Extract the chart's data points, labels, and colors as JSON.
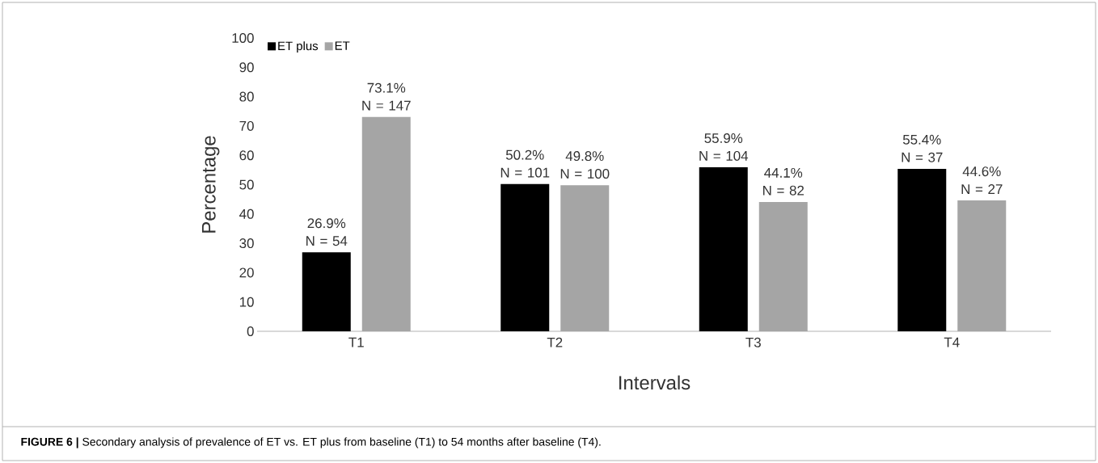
{
  "chart_data": {
    "type": "bar",
    "xlabel": "Intervals",
    "ylabel": "Percentage",
    "categories": [
      "T1",
      "T2",
      "T3",
      "T4"
    ],
    "series": [
      {
        "name": "ET plus",
        "color": "#000000",
        "values": [
          26.9,
          50.2,
          55.9,
          55.4
        ],
        "value_labels": [
          "26.9% N = 54",
          "50.2% N = 101",
          "55.9% N = 104",
          "55.4% N = 37"
        ]
      },
      {
        "name": "ET",
        "color": "#a5a5a5",
        "values": [
          73.1,
          49.8,
          44.1,
          44.6
        ],
        "value_labels": [
          "73.1% N = 147",
          "49.8% N = 100",
          "44.1% N = 82",
          "44.6% N = 27"
        ]
      }
    ],
    "ylim": [
      0,
      100
    ],
    "yticks": [
      0,
      10,
      20,
      30,
      40,
      50,
      60,
      70,
      80,
      90,
      100
    ],
    "grid": false,
    "legend": "top left",
    "annotations": [
      "**FIGURE 6 |** Secondary analysis of prevalence of ET vs. ET plus from baseline (T1) to 54 months after baseline (T4)."
    ]
  }
}
